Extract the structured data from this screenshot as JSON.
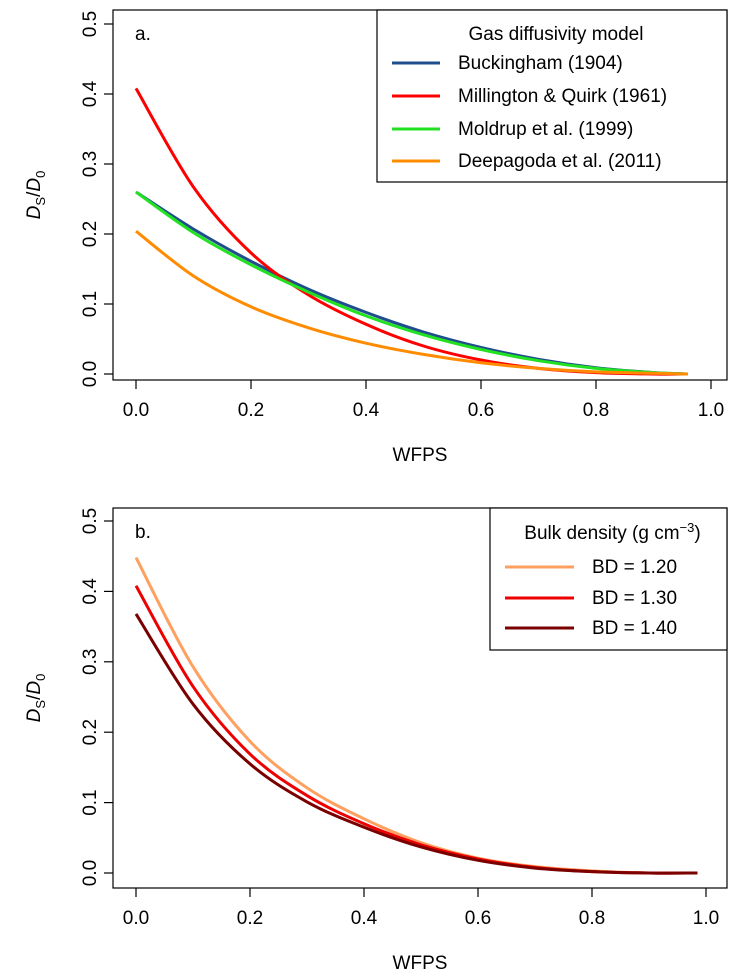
{
  "chart_data": [
    {
      "type": "line",
      "panel_label": "a.",
      "xlabel": "WFPS",
      "ylabel_main": "D",
      "ylabel_sub1": "S",
      "ylabel_slash": "/",
      "ylabel_main2": "D",
      "ylabel_sub2": "0",
      "xlim": [
        0,
        1.0
      ],
      "ylim": [
        0,
        0.5
      ],
      "xticks": [
        0.0,
        0.2,
        0.4,
        0.6,
        0.8,
        1.0
      ],
      "xtick_labels": [
        "0.0",
        "0.2",
        "0.4",
        "0.6",
        "0.8",
        "1.0"
      ],
      "yticks": [
        0.0,
        0.1,
        0.2,
        0.3,
        0.4,
        0.5
      ],
      "ytick_labels": [
        "0.0",
        "0.1",
        "0.2",
        "0.3",
        "0.4",
        "0.5"
      ],
      "legend_title": "Gas diffusivity model",
      "legend_position": "top-right",
      "x": [
        0.0,
        0.1,
        0.2,
        0.3,
        0.4,
        0.5,
        0.6,
        0.7,
        0.8,
        0.9,
        0.96
      ],
      "series": [
        {
          "name": "Buckingham (1904)",
          "color": "#1f4e8c",
          "values": [
            0.26,
            0.207,
            0.161,
            0.121,
            0.088,
            0.06,
            0.038,
            0.021,
            0.009,
            0.002,
            0.0
          ]
        },
        {
          "name": "Millington & Quirk (1961)",
          "color": "#ff0000",
          "values": [
            0.408,
            0.267,
            0.173,
            0.113,
            0.071,
            0.04,
            0.02,
            0.008,
            0.002,
            0.0,
            0.0
          ]
        },
        {
          "name": "Moldrup et al. (1999)",
          "color": "#22e022",
          "values": [
            0.26,
            0.202,
            0.156,
            0.117,
            0.083,
            0.056,
            0.035,
            0.019,
            0.008,
            0.002,
            0.0
          ]
        },
        {
          "name": "Deepagoda et al. (2011)",
          "color": "#ff8c00",
          "values": [
            0.204,
            0.14,
            0.096,
            0.066,
            0.044,
            0.028,
            0.016,
            0.008,
            0.003,
            0.001,
            0.0
          ]
        }
      ]
    },
    {
      "type": "line",
      "panel_label": "b.",
      "xlabel": "WFPS",
      "ylabel_main": "D",
      "ylabel_sub1": "S",
      "ylabel_slash": "/",
      "ylabel_main2": "D",
      "ylabel_sub2": "0",
      "xlim": [
        0,
        1.0
      ],
      "ylim": [
        0,
        0.5
      ],
      "xticks": [
        0.0,
        0.2,
        0.4,
        0.6,
        0.8,
        1.0
      ],
      "xtick_labels": [
        "0.0",
        "0.2",
        "0.4",
        "0.6",
        "0.8",
        "1.0"
      ],
      "yticks": [
        0.0,
        0.1,
        0.2,
        0.3,
        0.4,
        0.5
      ],
      "ytick_labels": [
        "0.0",
        "0.1",
        "0.2",
        "0.3",
        "0.4",
        "0.5"
      ],
      "legend_title_main": "Bulk density (g cm",
      "legend_title_sup": "−3",
      "legend_title_end": ")",
      "legend_position": "top-right",
      "x": [
        0.0,
        0.1,
        0.2,
        0.3,
        0.4,
        0.5,
        0.6,
        0.7,
        0.8,
        0.9,
        0.985
      ],
      "series": [
        {
          "name": "BD = 1.20",
          "color": "#ffa060",
          "values": [
            0.448,
            0.293,
            0.187,
            0.121,
            0.077,
            0.043,
            0.021,
            0.009,
            0.003,
            0.0,
            0.0
          ]
        },
        {
          "name": "BD = 1.30",
          "color": "#ee0000",
          "values": [
            0.408,
            0.265,
            0.169,
            0.11,
            0.07,
            0.04,
            0.02,
            0.008,
            0.002,
            0.0,
            0.0
          ]
        },
        {
          "name": "BD = 1.40",
          "color": "#7a0000",
          "values": [
            0.368,
            0.24,
            0.155,
            0.101,
            0.065,
            0.037,
            0.018,
            0.007,
            0.002,
            0.0,
            0.0
          ]
        }
      ]
    }
  ]
}
